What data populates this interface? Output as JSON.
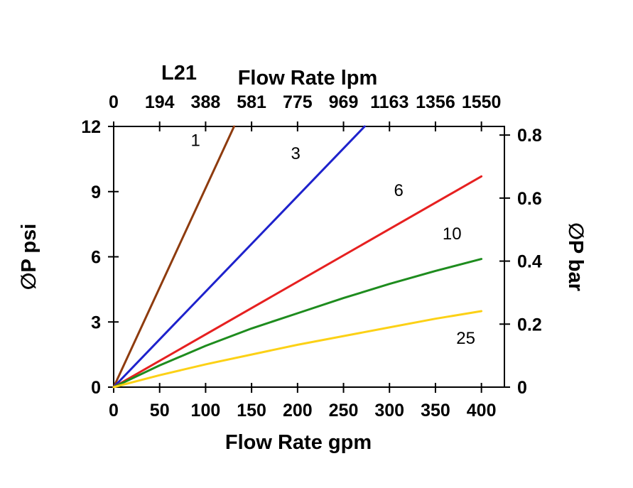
{
  "page": {
    "background": "#ffffff"
  },
  "chart_data": {
    "type": "line",
    "title": "L21",
    "top_axis_label": "Flow Rate lpm",
    "bottom_axis_label": "Flow Rate gpm",
    "left_axis_label": "∅P psi",
    "right_axis_label": "∅P bar",
    "x_range": [
      0,
      425
    ],
    "y_range": [
      0,
      12
    ],
    "bottom_ticks_gpm": [
      0,
      50,
      100,
      150,
      200,
      250,
      300,
      350,
      400
    ],
    "top_tick_labels_lpm": [
      "0",
      "194",
      "388",
      "581",
      "775",
      "969",
      "1163",
      "1356",
      "1550"
    ],
    "left_ticks_psi": [
      0,
      3,
      6,
      9,
      12
    ],
    "right_ticks_bar": [
      0,
      0.2,
      0.4,
      0.6,
      0.8
    ],
    "bar_to_psi": 14.5038,
    "grid": false,
    "legend": "inline-labels",
    "axis_color": "#000000",
    "background": "#ffffff",
    "series": [
      {
        "name": "1",
        "color": "#8e3b0e",
        "points": [
          [
            0,
            0
          ],
          [
            131,
            12
          ]
        ],
        "label_pos": [
          89,
          11.1
        ]
      },
      {
        "name": "3",
        "color": "#1e22cc",
        "points": [
          [
            0,
            0
          ],
          [
            273,
            12
          ]
        ],
        "label_pos": [
          198,
          10.5
        ]
      },
      {
        "name": "6",
        "color": "#e62020",
        "points": [
          [
            0,
            0
          ],
          [
            400,
            9.7
          ]
        ],
        "label_pos": [
          310,
          8.8
        ]
      },
      {
        "name": "10",
        "color": "#1e8c1e",
        "points": [
          [
            0,
            0
          ],
          [
            50,
            1.0
          ],
          [
            100,
            1.9
          ],
          [
            150,
            2.7
          ],
          [
            200,
            3.4
          ],
          [
            250,
            4.1
          ],
          [
            300,
            4.75
          ],
          [
            350,
            5.35
          ],
          [
            400,
            5.9
          ]
        ],
        "label_pos": [
          368,
          6.8
        ]
      },
      {
        "name": "25",
        "color": "#fcd116",
        "points": [
          [
            0,
            0
          ],
          [
            50,
            0.55
          ],
          [
            100,
            1.05
          ],
          [
            150,
            1.5
          ],
          [
            200,
            1.95
          ],
          [
            250,
            2.35
          ],
          [
            300,
            2.75
          ],
          [
            350,
            3.15
          ],
          [
            400,
            3.5
          ]
        ],
        "label_pos": [
          383,
          2.0
        ]
      }
    ]
  }
}
